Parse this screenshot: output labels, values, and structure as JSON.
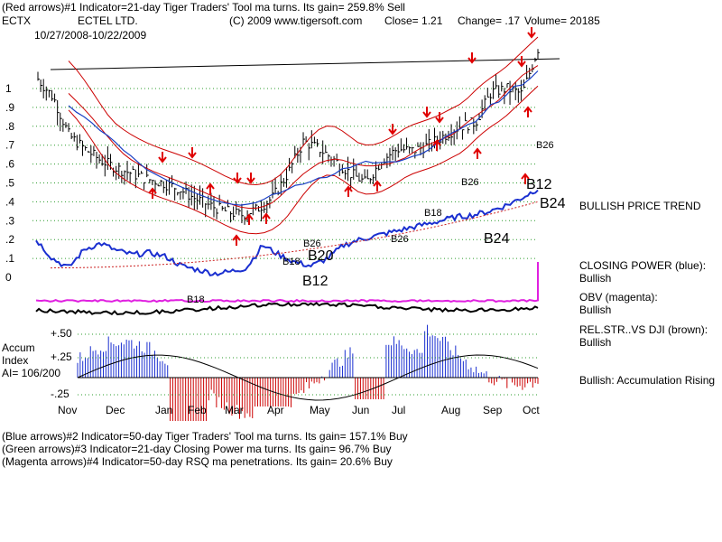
{
  "header": {
    "line1": "(Red arrows)#1 Indicator=21-day Tiger Traders' Tool ma turns. Its gain= 259.8% Sell",
    "ticker": "ECTX",
    "company": "ECTEL LTD.",
    "copyright": "(C) 2009 www.tigersoft.com",
    "close": "Close=  1.21",
    "change": "Change= .17",
    "volume": "Volume= 20185",
    "date_range": "10/27/2008-10/22/2009"
  },
  "right_labels": {
    "trend": "BULLISH PRICE TREND",
    "cp_title": "CLOSING POWER (blue):",
    "cp_value": "Bullish",
    "obv_title": "OBV (magenta):",
    "obv_value": "Bullish",
    "rel_title": "REL.STR..VS DJI (brown):",
    "rel_value": "Bullish",
    "accum": "Bullish: Accumulation Rising"
  },
  "accum_panel": {
    "title1": "Accum",
    "title2": "Index",
    "ai": "AI= 106/200",
    "p50": "+.50",
    "p25": "+.25",
    "m25": "-.25"
  },
  "footer": {
    "line2": "(Blue arrows)#2 Indicator=50-day Tiger Traders' Tool ma turns. Its gain= 157.1% Buy",
    "line3": "(Green arrows)#3 Indicator=21-day Closing Power ma turns. Its gain= 96.7% Buy",
    "line4": "(Magenta arrows)#4 Indicator=50-day RSQ ma penetrations. Its gain= 20.6% Buy"
  },
  "chart_data": {
    "type": "line",
    "title": "ECTX ECTEL LTD.",
    "date_range": "10/27/2008-10/22/2009",
    "ylim": [
      -0.05,
      1.2
    ],
    "y_ticks": [
      "1",
      ".9",
      ".8",
      ".7",
      ".6",
      ".5",
      ".4",
      ".3",
      ".2",
      ".1",
      "0"
    ],
    "y_tick_values": [
      1.0,
      0.9,
      0.8,
      0.7,
      0.6,
      0.5,
      0.4,
      0.3,
      0.2,
      0.1,
      0.0
    ],
    "months": [
      "Nov",
      "Dec",
      "Jan",
      "Feb",
      "Mar",
      "Apr",
      "May",
      "Jun",
      "Jul",
      "Aug",
      "Sep",
      "Oct"
    ],
    "price_close": [
      1.05,
      0.95,
      0.75,
      0.68,
      0.62,
      0.58,
      0.55,
      0.52,
      0.5,
      0.47,
      0.42,
      0.38,
      0.35,
      0.33,
      0.36,
      0.42,
      0.55,
      0.72,
      0.68,
      0.62,
      0.55,
      0.5,
      0.62,
      0.68,
      0.67,
      0.7,
      0.75,
      0.8,
      0.82,
      0.98,
      1.0,
      0.97,
      1.21
    ],
    "closing_power_blue": [
      0.2,
      0.1,
      0.05,
      0.15,
      0.18,
      0.14,
      0.12,
      0.13,
      0.11,
      0.06,
      0.04,
      0.02,
      0.03,
      0.05,
      0.17,
      0.12,
      0.08,
      0.06,
      0.1,
      0.17,
      0.2,
      0.22,
      0.24,
      0.26,
      0.28,
      0.3,
      0.32,
      0.33,
      0.35,
      0.38,
      0.42,
      0.47
    ],
    "rel_strength_brown_note": "",
    "accum_index_levels": [
      "+.50",
      "+.25",
      "-.25"
    ],
    "ai": "AI= 106/200",
    "annotations": [
      "B18",
      "B26",
      "B18",
      "B26",
      "B20",
      "B12",
      "B24",
      "B26",
      "B12",
      "B24",
      "B18"
    ]
  }
}
